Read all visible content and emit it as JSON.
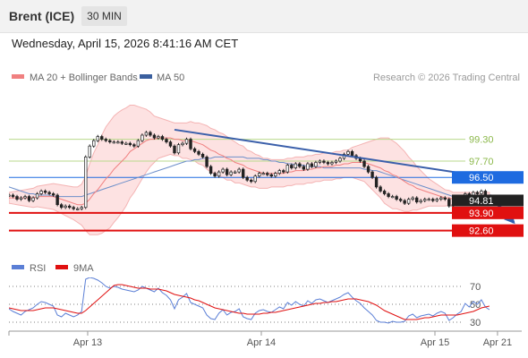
{
  "header": {
    "instrument": "Brent (ICE)",
    "timeframe": "30 MIN"
  },
  "timestamp": "Wednesday, April 15, 2026 8:41:16 AM CET",
  "colors": {
    "bollinger": "#f08080",
    "bollinger_fill": "#fde2e2",
    "ma50": "#3a5f9e",
    "trendline": "#3a5faa",
    "pivot": "#1e6be0",
    "support": "#e01010",
    "resistance": "#b9d98c",
    "price": "#222222",
    "candle_up": "#ffffff",
    "candle_down": "#222222",
    "rsi": "#5b7fd6",
    "rsi_ma": "#e01010"
  },
  "chart_data": [
    {
      "type": "line",
      "title": "",
      "legend": [
        {
          "name": "MA 20 + Bollinger Bands",
          "color": "#f08080"
        },
        {
          "name": "MA 50",
          "color": "#3a5f9e"
        }
      ],
      "legend_position": "top-left",
      "copyright": "Research © 2026 Trading Central",
      "x_ticks": [
        {
          "label": "Apr 13",
          "t": 19.5
        },
        {
          "label": "Apr 14",
          "t": 62.5
        },
        {
          "label": "Apr 15",
          "t": 105.5
        },
        {
          "label": "Apr 21",
          "t": 121
        }
      ],
      "t_range": [
        0,
        127
      ],
      "y_range": [
        91.0,
        102.95
      ],
      "close": [
        95.2,
        95.1,
        94.9,
        95.0,
        95.1,
        94.8,
        95.0,
        95.3,
        95.5,
        95.4,
        95.3,
        95.2,
        94.5,
        94.3,
        94.4,
        94.3,
        94.2,
        94.2,
        94.3,
        98.0,
        98.8,
        99.2,
        99.5,
        99.3,
        99.2,
        99.1,
        99.1,
        99.1,
        99.0,
        99.0,
        98.9,
        98.8,
        99.2,
        99.6,
        99.8,
        99.6,
        99.4,
        99.5,
        99.3,
        99.1,
        98.8,
        98.3,
        98.9,
        99.0,
        99.3,
        98.6,
        98.4,
        98.2,
        98.0,
        97.3,
        96.8,
        96.6,
        96.9,
        97.1,
        96.7,
        96.9,
        96.9,
        97.1,
        96.5,
        96.3,
        96.2,
        96.6,
        96.8,
        96.8,
        96.7,
        96.6,
        96.8,
        97.0,
        96.9,
        97.4,
        97.2,
        97.5,
        97.3,
        97.1,
        97.5,
        97.3,
        97.6,
        97.7,
        97.6,
        97.5,
        97.6,
        97.7,
        97.9,
        98.2,
        98.4,
        98.1,
        97.9,
        97.7,
        97.3,
        96.9,
        96.5,
        95.8,
        95.5,
        95.3,
        95.1,
        95.1,
        94.9,
        94.8,
        94.6,
        94.9,
        95.0,
        94.7,
        94.8,
        94.9,
        94.9,
        94.8,
        94.9,
        95.0,
        94.9,
        94.4,
        94.5,
        94.7,
        94.9,
        95.3,
        95.1,
        95.4,
        95.3,
        95.5,
        95.1,
        94.81
      ],
      "series": [
        {
          "name": "MA 20 + Bollinger Bands",
          "values": [
            95.0,
            95.0,
            95.0,
            95.0,
            95.0,
            95.0,
            95.0,
            95.1,
            95.1,
            95.1,
            95.1,
            95.1,
            95.0,
            94.9,
            94.8,
            94.7,
            94.6,
            94.5,
            94.5,
            94.6,
            94.9,
            95.3,
            95.6,
            96.0,
            96.4,
            96.7,
            97.1,
            97.4,
            97.7,
            98.0,
            98.4,
            98.6,
            98.8,
            99.0,
            99.2,
            99.3,
            99.3,
            99.4,
            99.4,
            99.4,
            99.4,
            99.3,
            99.3,
            99.2,
            99.2,
            99.2,
            99.1,
            99.0,
            98.9,
            98.7,
            98.5,
            98.4,
            98.2,
            98.1,
            97.9,
            97.8,
            97.6,
            97.5,
            97.4,
            97.2,
            97.1,
            97.0,
            96.9,
            96.8,
            96.8,
            96.8,
            96.8,
            96.8,
            96.8,
            96.9,
            96.9,
            97.0,
            97.0,
            97.0,
            97.1,
            97.1,
            97.2,
            97.2,
            97.3,
            97.3,
            97.3,
            97.4,
            97.4,
            97.5,
            97.5,
            97.6,
            97.6,
            97.6,
            97.6,
            97.5,
            97.4,
            97.3,
            97.2,
            97.0,
            96.9,
            96.7,
            96.6,
            96.4,
            96.2,
            96.0,
            95.9,
            95.7,
            95.6,
            95.5,
            95.4,
            95.3,
            95.2,
            95.1,
            95.0,
            95.0,
            94.9,
            94.9,
            94.9,
            94.9,
            94.9,
            94.9,
            94.9,
            94.9,
            94.9,
            94.9
          ]
        },
        {
          "name": "MA 50",
          "values": [
            95.8,
            95.7,
            95.6,
            95.5,
            95.4,
            95.3,
            95.3,
            95.2,
            95.2,
            95.2,
            95.2,
            95.1,
            95.1,
            95.1,
            95.1,
            95.1,
            95.1,
            95.1,
            95.1,
            95.2,
            95.3,
            95.4,
            95.5,
            95.6,
            95.7,
            95.8,
            95.9,
            96.0,
            96.1,
            96.2,
            96.3,
            96.4,
            96.5,
            96.6,
            96.7,
            96.8,
            96.9,
            97.0,
            97.1,
            97.2,
            97.3,
            97.4,
            97.5,
            97.6,
            97.7,
            97.7,
            97.8,
            97.8,
            97.9,
            97.9,
            97.9,
            98.0,
            98.0,
            98.0,
            98.0,
            98.0,
            98.0,
            98.0,
            98.0,
            97.9,
            97.9,
            97.9,
            97.9,
            97.8,
            97.8,
            97.7,
            97.7,
            97.6,
            97.6,
            97.5,
            97.5,
            97.4,
            97.4,
            97.4,
            97.3,
            97.3,
            97.3,
            97.3,
            97.2,
            97.2,
            97.2,
            97.2,
            97.2,
            97.2,
            97.2,
            97.2,
            97.2,
            97.2,
            97.1,
            97.1,
            97.0,
            97.0,
            96.9,
            96.8,
            96.7,
            96.6,
            96.5,
            96.4,
            96.3,
            96.2,
            96.1,
            96.0,
            95.9,
            95.8,
            95.7,
            95.6,
            95.5,
            95.4,
            95.3,
            95.2,
            95.1,
            95.1,
            95.0,
            95.0,
            95.0,
            94.9,
            94.9,
            94.9,
            94.9,
            94.9
          ]
        }
      ],
      "bollinger_width": [
        0.4,
        0.45,
        0.5,
        0.55,
        0.6,
        0.65,
        0.7,
        0.75,
        0.8,
        0.85,
        0.9,
        0.95,
        1.0,
        1.05,
        1.1,
        1.15,
        1.2,
        1.3,
        1.5,
        2.0,
        2.6,
        3.0,
        3.3,
        3.6,
        3.8,
        3.9,
        3.9,
        3.85,
        3.75,
        3.6,
        3.4,
        3.2,
        2.9,
        2.6,
        2.3,
        2.0,
        1.7,
        1.5,
        1.4,
        1.3,
        1.2,
        1.2,
        1.2,
        1.3,
        1.3,
        1.4,
        1.4,
        1.5,
        1.5,
        1.6,
        1.6,
        1.6,
        1.6,
        1.6,
        1.6,
        1.5,
        1.5,
        1.4,
        1.4,
        1.3,
        1.3,
        1.2,
        1.2,
        1.1,
        1.1,
        1.0,
        1.0,
        1.0,
        1.0,
        1.0,
        1.0,
        1.0,
        1.0,
        1.0,
        1.0,
        1.0,
        1.0,
        1.0,
        1.0,
        1.0,
        1.0,
        1.0,
        1.0,
        1.0,
        1.0,
        1.1,
        1.2,
        1.3,
        1.4,
        1.6,
        1.8,
        2.0,
        2.2,
        2.4,
        2.5,
        2.5,
        2.4,
        2.3,
        2.2,
        2.0,
        1.8,
        1.6,
        1.4,
        1.2,
        1.0,
        0.9,
        0.8,
        0.7,
        0.6,
        0.55,
        0.5,
        0.5,
        0.5,
        0.5,
        0.5,
        0.5,
        0.5,
        0.5,
        0.5,
        0.5
      ],
      "trendline": {
        "from": {
          "t": 41,
          "y": 100.0
        },
        "to": {
          "t": 119,
          "y": 96.5
        }
      },
      "projection": {
        "from": {
          "t": 119,
          "y": 95.2
        },
        "to": {
          "t": 125,
          "y": 93.2
        }
      },
      "levels": [
        {
          "value": 99.3,
          "label": "99.30",
          "kind": "resistance"
        },
        {
          "value": 97.7,
          "label": "97.70",
          "kind": "resistance"
        },
        {
          "value": 96.5,
          "label": "96.50",
          "kind": "pivot"
        },
        {
          "value": 93.9,
          "label": "93.90",
          "kind": "support"
        },
        {
          "value": 92.6,
          "label": "92.60",
          "kind": "support"
        }
      ],
      "last_price": {
        "value": 94.81,
        "label": "94.81"
      }
    },
    {
      "type": "line",
      "title": "",
      "legend": [
        {
          "name": "RSI",
          "color": "#5b7fd6"
        },
        {
          "name": "9MA",
          "color": "#e01010"
        }
      ],
      "y_range": [
        20,
        80
      ],
      "y_ticks": [
        {
          "value": 70,
          "label": "70"
        },
        {
          "value": 50,
          "label": "50"
        },
        {
          "value": 30,
          "label": "30"
        }
      ],
      "series": [
        {
          "name": "RSI",
          "values": [
            45,
            42,
            40,
            38,
            42,
            44,
            46,
            50,
            53,
            52,
            50,
            48,
            38,
            36,
            40,
            38,
            36,
            38,
            42,
            78,
            80,
            79,
            77,
            74,
            70,
            68,
            70,
            69,
            67,
            66,
            65,
            64,
            66,
            70,
            68,
            66,
            64,
            68,
            63,
            60,
            55,
            45,
            55,
            58,
            62,
            52,
            50,
            48,
            46,
            38,
            34,
            33,
            40,
            44,
            38,
            41,
            42,
            45,
            36,
            34,
            33,
            40,
            43,
            44,
            42,
            41,
            44,
            47,
            45,
            52,
            49,
            53,
            50,
            48,
            54,
            51,
            55,
            56,
            54,
            52,
            54,
            56,
            58,
            61,
            63,
            58,
            54,
            51,
            46,
            42,
            38,
            32,
            30,
            30,
            29,
            31,
            30,
            30,
            31,
            37,
            39,
            35,
            37,
            38,
            39,
            37,
            40,
            42,
            40,
            32,
            35,
            39,
            42,
            51,
            47,
            53,
            50,
            55,
            47,
            44
          ]
        },
        {
          "name": "9MA",
          "values": [
            46,
            45,
            44,
            43,
            43,
            43,
            43,
            44,
            45,
            46,
            46,
            46,
            45,
            44,
            43,
            42,
            41,
            40,
            40,
            43,
            47,
            51,
            55,
            59,
            63,
            67,
            71,
            72,
            72,
            71,
            70,
            69,
            68,
            68,
            68,
            67,
            67,
            67,
            66,
            65,
            63,
            61,
            60,
            59,
            58,
            57,
            55,
            54,
            52,
            50,
            48,
            46,
            45,
            44,
            43,
            42,
            41,
            40,
            40,
            39,
            39,
            39,
            39,
            40,
            40,
            41,
            41,
            42,
            43,
            44,
            45,
            46,
            47,
            48,
            49,
            50,
            51,
            51,
            52,
            52,
            53,
            53,
            54,
            55,
            56,
            56,
            56,
            55,
            54,
            53,
            51,
            49,
            46,
            43,
            41,
            39,
            37,
            35,
            33,
            33,
            33,
            33,
            34,
            35,
            35,
            36,
            37,
            38,
            38,
            38,
            38,
            38,
            39,
            40,
            41,
            42,
            44,
            46,
            47,
            48
          ]
        }
      ]
    }
  ]
}
